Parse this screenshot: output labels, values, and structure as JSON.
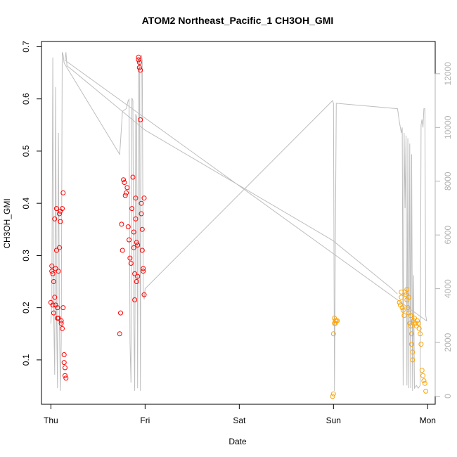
{
  "chart_data": {
    "type": "scatter",
    "title": "ATOM2 Northeast_Pacific_1 CH3OH_GMI",
    "xlabel": "Date",
    "ylabel": "CH3OH_GMI",
    "x_ticks": [
      "Thu",
      "Fri",
      "Sat",
      "Sun",
      "Mon"
    ],
    "x_tick_days": [
      0,
      1,
      2,
      3,
      4
    ],
    "xlim_days": [
      -0.1,
      4.08
    ],
    "ylim": [
      0.015,
      0.71
    ],
    "y_ticks": [
      0.1,
      0.2,
      0.3,
      0.4,
      0.5,
      0.6,
      0.7
    ],
    "ylim_right": [
      -300,
      13200
    ],
    "y_ticks_right": [
      0,
      2000,
      4000,
      6000,
      8000,
      10000,
      12000
    ],
    "grid": false,
    "colors": {
      "series1": "#ff0000",
      "series2": "#ffa500",
      "altitude": "#bebebe"
    },
    "series": [
      {
        "color": "#ff0000",
        "points": [
          [
            0.0,
            0.21
          ],
          [
            0.01,
            0.27
          ],
          [
            0.01,
            0.28
          ],
          [
            0.02,
            0.265
          ],
          [
            0.02,
            0.205
          ],
          [
            0.03,
            0.19
          ],
          [
            0.03,
            0.25
          ],
          [
            0.04,
            0.37
          ],
          [
            0.04,
            0.22
          ],
          [
            0.05,
            0.205
          ],
          [
            0.05,
            0.275
          ],
          [
            0.06,
            0.31
          ],
          [
            0.06,
            0.39
          ],
          [
            0.07,
            0.2
          ],
          [
            0.07,
            0.18
          ],
          [
            0.08,
            0.18
          ],
          [
            0.08,
            0.27
          ],
          [
            0.09,
            0.315
          ],
          [
            0.09,
            0.38
          ],
          [
            0.1,
            0.385
          ],
          [
            0.1,
            0.365
          ],
          [
            0.11,
            0.17
          ],
          [
            0.11,
            0.175
          ],
          [
            0.12,
            0.16
          ],
          [
            0.12,
            0.39
          ],
          [
            0.13,
            0.42
          ],
          [
            0.13,
            0.2
          ],
          [
            0.14,
            0.11
          ],
          [
            0.14,
            0.095
          ],
          [
            0.15,
            0.085
          ],
          [
            0.15,
            0.07
          ],
          [
            0.16,
            0.065
          ],
          [
            0.73,
            0.15
          ],
          [
            0.74,
            0.19
          ],
          [
            0.75,
            0.36
          ],
          [
            0.76,
            0.31
          ],
          [
            0.77,
            0.445
          ],
          [
            0.78,
            0.44
          ],
          [
            0.79,
            0.415
          ],
          [
            0.8,
            0.42
          ],
          [
            0.81,
            0.43
          ],
          [
            0.82,
            0.355
          ],
          [
            0.83,
            0.33
          ],
          [
            0.84,
            0.295
          ],
          [
            0.85,
            0.285
          ],
          [
            0.86,
            0.39
          ],
          [
            0.87,
            0.45
          ],
          [
            0.88,
            0.345
          ],
          [
            0.88,
            0.315
          ],
          [
            0.89,
            0.265
          ],
          [
            0.89,
            0.215
          ],
          [
            0.9,
            0.37
          ],
          [
            0.9,
            0.41
          ],
          [
            0.91,
            0.325
          ],
          [
            0.91,
            0.25
          ],
          [
            0.92,
            0.32
          ],
          [
            0.92,
            0.26
          ],
          [
            0.93,
            0.68
          ],
          [
            0.93,
            0.675
          ],
          [
            0.94,
            0.67
          ],
          [
            0.94,
            0.66
          ],
          [
            0.95,
            0.655
          ],
          [
            0.95,
            0.56
          ],
          [
            0.96,
            0.4
          ],
          [
            0.96,
            0.38
          ],
          [
            0.97,
            0.35
          ],
          [
            0.97,
            0.31
          ],
          [
            0.98,
            0.275
          ],
          [
            0.98,
            0.27
          ],
          [
            0.99,
            0.225
          ],
          [
            0.99,
            0.41
          ]
        ]
      },
      {
        "color": "#ffa500",
        "points": [
          [
            2.99,
            0.03
          ],
          [
            3.0,
            0.035
          ],
          [
            3.0,
            0.15
          ],
          [
            3.01,
            0.17
          ],
          [
            3.01,
            0.18
          ],
          [
            3.02,
            0.175
          ],
          [
            3.02,
            0.17
          ],
          [
            3.03,
            0.175
          ],
          [
            3.04,
            0.175
          ],
          [
            3.7,
            0.21
          ],
          [
            3.71,
            0.205
          ],
          [
            3.72,
            0.22
          ],
          [
            3.73,
            0.2
          ],
          [
            3.74,
            0.195
          ],
          [
            3.75,
            0.185
          ],
          [
            3.76,
            0.23
          ],
          [
            3.77,
            0.225
          ],
          [
            3.78,
            0.215
          ],
          [
            3.79,
            0.2
          ],
          [
            3.8,
            0.19
          ],
          [
            3.81,
            0.17
          ],
          [
            3.82,
            0.185
          ],
          [
            3.82,
            0.165
          ],
          [
            3.83,
            0.15
          ],
          [
            3.83,
            0.13
          ],
          [
            3.84,
            0.115
          ],
          [
            3.84,
            0.1
          ],
          [
            3.85,
            0.175
          ],
          [
            3.86,
            0.18
          ],
          [
            3.87,
            0.17
          ],
          [
            3.88,
            0.165
          ],
          [
            3.89,
            0.175
          ],
          [
            3.9,
            0.17
          ],
          [
            3.91,
            0.16
          ],
          [
            3.92,
            0.15
          ],
          [
            3.93,
            0.13
          ],
          [
            3.94,
            0.08
          ],
          [
            3.95,
            0.07
          ],
          [
            3.96,
            0.06
          ],
          [
            3.97,
            0.055
          ],
          [
            3.98,
            0.04
          ],
          [
            3.72,
            0.23
          ],
          [
            3.78,
            0.235
          ],
          [
            3.8,
            0.22
          ]
        ]
      }
    ],
    "altitude_line": {
      "axis": "right",
      "points": [
        [
          0.0,
          2700
        ],
        [
          0.01,
          3500
        ],
        [
          0.02,
          12600
        ],
        [
          0.03,
          3000
        ],
        [
          0.04,
          800
        ],
        [
          0.05,
          11500
        ],
        [
          0.06,
          3000
        ],
        [
          0.07,
          300
        ],
        [
          0.08,
          9800
        ],
        [
          0.09,
          2900
        ],
        [
          0.1,
          200
        ],
        [
          0.11,
          2000
        ],
        [
          0.12,
          12800
        ],
        [
          0.13,
          12700
        ],
        [
          0.14,
          12400
        ],
        [
          0.73,
          9000
        ],
        [
          0.74,
          9500
        ],
        [
          0.76,
          10600
        ],
        [
          0.8,
          10700
        ],
        [
          0.82,
          11000
        ],
        [
          0.83,
          11050
        ],
        [
          0.84,
          2000
        ],
        [
          0.85,
          500
        ],
        [
          0.86,
          11100
        ],
        [
          0.87,
          11000
        ],
        [
          0.88,
          3000
        ],
        [
          0.89,
          200
        ],
        [
          0.9,
          10500
        ],
        [
          0.91,
          10400
        ],
        [
          0.92,
          300
        ],
        [
          0.93,
          12500
        ],
        [
          0.94,
          12600
        ],
        [
          0.95,
          200
        ],
        [
          0.96,
          12700
        ],
        [
          0.97,
          12500
        ],
        [
          0.98,
          4000
        ],
        [
          0.99,
          3600
        ],
        [
          1.0,
          4000
        ],
        [
          2.99,
          11000
        ],
        [
          3.0,
          10900
        ],
        [
          3.01,
          200
        ],
        [
          3.02,
          5800
        ],
        [
          3.03,
          10900
        ],
        [
          3.68,
          10700
        ],
        [
          3.7,
          10200
        ],
        [
          3.72,
          9800
        ],
        [
          3.73,
          10000
        ],
        [
          3.74,
          400
        ],
        [
          3.75,
          9800
        ],
        [
          3.76,
          7000
        ],
        [
          3.77,
          9700
        ],
        [
          3.78,
          400
        ],
        [
          3.79,
          9600
        ],
        [
          3.8,
          300
        ],
        [
          3.81,
          9400
        ],
        [
          3.82,
          300
        ],
        [
          3.83,
          9000
        ],
        [
          3.84,
          200
        ],
        [
          3.85,
          4500
        ],
        [
          3.86,
          300
        ],
        [
          3.88,
          400
        ],
        [
          3.9,
          300
        ],
        [
          3.92,
          400
        ],
        [
          3.93,
          10100
        ],
        [
          3.94,
          10300
        ],
        [
          3.95,
          10000
        ],
        [
          3.96,
          10700
        ],
        [
          3.97,
          10700
        ],
        [
          3.98,
          3000
        ],
        [
          3.99,
          2800
        ],
        [
          0.15,
          12500
        ],
        [
          0.16,
          12800
        ],
        [
          0.17,
          12300
        ],
        [
          1.0,
          9900
        ],
        [
          2.99,
          5800
        ],
        [
          3.62,
          4000
        ],
        [
          3.68,
          3800
        ]
      ]
    }
  }
}
